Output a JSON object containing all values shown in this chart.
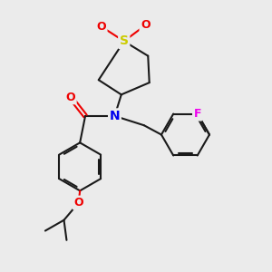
{
  "background_color": "#ebebeb",
  "bond_color": "#1a1a1a",
  "bond_width": 1.5,
  "atom_colors": {
    "N": "#0000ee",
    "O": "#ee0000",
    "S": "#cccc00",
    "F": "#ee00ee",
    "C": "#1a1a1a"
  }
}
